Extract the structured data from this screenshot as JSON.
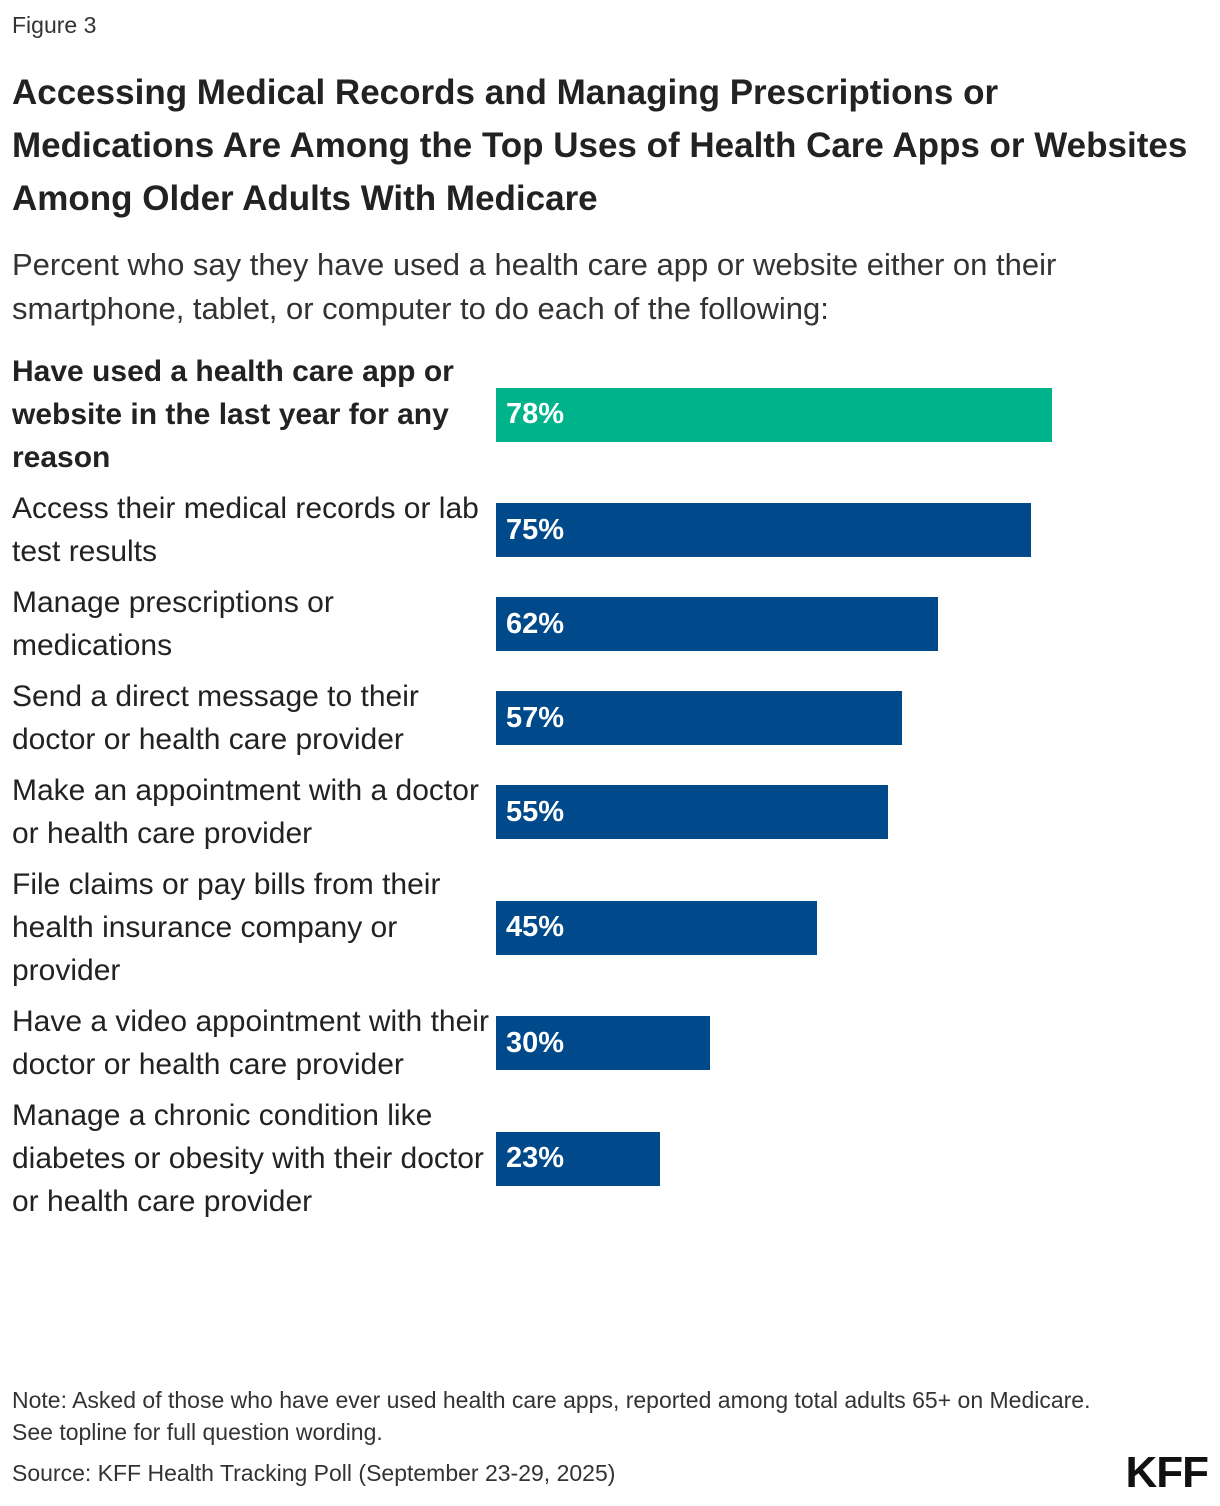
{
  "figure_label": "Figure 3",
  "chart_data": {
    "type": "bar",
    "orientation": "horizontal",
    "title": "Accessing Medical Records and Managing Prescriptions or Medications Are Among the Top Uses of Health Care Apps or Websites Among Older Adults With Medicare",
    "subtitle": "Percent who say they have used a health care app or website either on their smartphone, tablet, or computer to do each of the following:",
    "categories": [
      "Have used a health care app or website in the last year for any reason",
      "Access their medical records or lab test results",
      "Manage prescriptions or medications",
      "Send a direct message to their doctor or health care provider",
      "Make an appointment with a doctor or health care provider",
      "File claims or pay bills from their health insurance company or provider",
      "Have a video appointment with their doctor or health care provider",
      "Manage a chronic condition like diabetes or obesity with their doctor or health care provider"
    ],
    "values": [
      78,
      75,
      62,
      57,
      55,
      45,
      30,
      23
    ],
    "value_labels": [
      "78%",
      "75%",
      "62%",
      "57%",
      "55%",
      "45%",
      "30%",
      "23%"
    ],
    "colors": [
      "#00b38a",
      "#004a8b",
      "#004a8b",
      "#004a8b",
      "#004a8b",
      "#004a8b",
      "#004a8b",
      "#004a8b"
    ],
    "note": "Note: Asked of those who have ever used health care apps, reported among total adults 65+ on Medicare. See topline for full question wording.",
    "source": "Source: KFF Health Tracking Poll (September 23-29, 2025)"
  },
  "logo": "KFF"
}
